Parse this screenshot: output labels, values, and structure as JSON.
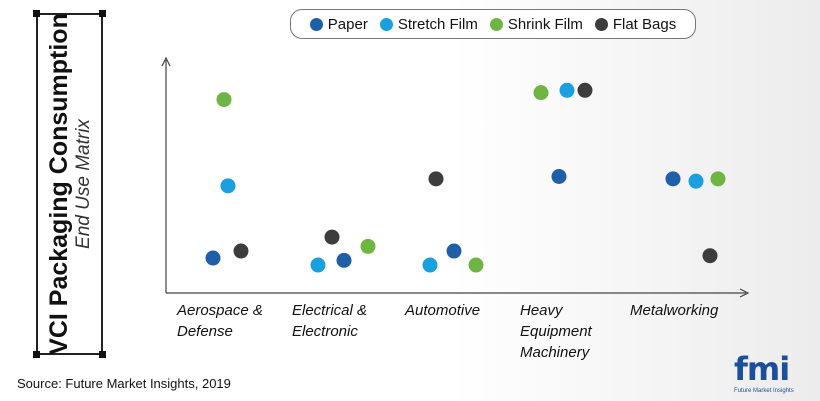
{
  "title": "VCI Packaging Consumption",
  "subtitle": "End Use Matrix",
  "source": "Source: Future Market Insights, 2019",
  "logo": {
    "mark": "fmi",
    "tagline": "Future Market Insights"
  },
  "colors": {
    "Paper": "#1f5fa8",
    "Stretch Film": "#1aa0e0",
    "Shrink Film": "#6fb544",
    "Flat Bags": "#3d3d3d"
  },
  "chart_data": {
    "type": "scatter",
    "categories": [
      "Aerospace & Defense",
      "Electrical & Electronic",
      "Automotive",
      "Heavy Equipment Machinery",
      "Metalworking"
    ],
    "category_labels": [
      "Aerospace &\nDefense",
      "Electrical &\nElectronic",
      "Automotive",
      "Heavy\nEquipment\nMachinery",
      "Metalworking"
    ],
    "legend_position": "top",
    "ylim": [
      0,
      10
    ],
    "series": [
      {
        "name": "Paper",
        "values": [
          1.5,
          1.4,
          1.8,
          5.0,
          4.9
        ]
      },
      {
        "name": "Stretch Film",
        "values": [
          4.6,
          1.2,
          1.2,
          8.7,
          4.8
        ]
      },
      {
        "name": "Shrink Film",
        "values": [
          8.3,
          2.0,
          1.2,
          8.6,
          4.9
        ]
      },
      {
        "name": "Flat Bags",
        "values": [
          1.8,
          2.4,
          4.9,
          8.7,
          1.6
        ]
      }
    ]
  }
}
